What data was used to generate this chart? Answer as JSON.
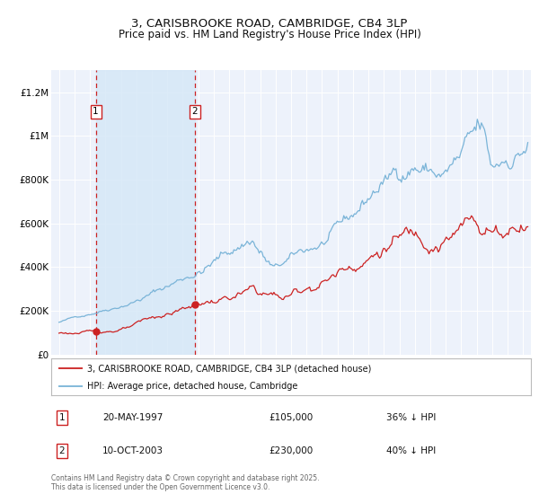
{
  "title": "3, CARISBROOKE ROAD, CAMBRIDGE, CB4 3LP",
  "subtitle": "Price paid vs. HM Land Registry's House Price Index (HPI)",
  "title_fontsize": 9.5,
  "subtitle_fontsize": 8.5,
  "bg_color": "#ffffff",
  "plot_bg_color": "#edf2fb",
  "grid_color": "#ffffff",
  "hpi_color": "#7ab4d8",
  "price_color": "#cc2222",
  "sale1_date_x": 1997.38,
  "sale1_price": 105000,
  "sale2_date_x": 2003.78,
  "sale2_price": 230000,
  "sale1_label": "1",
  "sale2_label": "2",
  "ylim": [
    0,
    1300000
  ],
  "yticks": [
    0,
    200000,
    400000,
    600000,
    800000,
    1000000,
    1200000
  ],
  "ytick_labels": [
    "£0",
    "£200K",
    "£400K",
    "£600K",
    "£800K",
    "£1M",
    "£1.2M"
  ],
  "xlim_start": 1994.5,
  "xlim_end": 2025.5,
  "legend_label_price": "3, CARISBROOKE ROAD, CAMBRIDGE, CB4 3LP (detached house)",
  "legend_label_hpi": "HPI: Average price, detached house, Cambridge",
  "footer": "Contains HM Land Registry data © Crown copyright and database right 2025.\nThis data is licensed under the Open Government Licence v3.0.",
  "table_rows": [
    {
      "num": "1",
      "date": "20-MAY-1997",
      "price": "£105,000",
      "hpi": "36% ↓ HPI"
    },
    {
      "num": "2",
      "date": "10-OCT-2003",
      "price": "£230,000",
      "hpi": "40% ↓ HPI"
    }
  ],
  "hpi_segments": [
    [
      1995.0,
      1997.5,
      148000,
      190000,
      0.01
    ],
    [
      1997.5,
      2000.0,
      190000,
      248000,
      0.012
    ],
    [
      2000.0,
      2004.0,
      248000,
      378000,
      0.015
    ],
    [
      2004.0,
      2007.5,
      378000,
      520000,
      0.018
    ],
    [
      2007.5,
      2009.0,
      520000,
      415000,
      0.022
    ],
    [
      2009.0,
      2014.0,
      415000,
      630000,
      0.015
    ],
    [
      2014.0,
      2016.0,
      630000,
      800000,
      0.018
    ],
    [
      2016.0,
      2018.0,
      800000,
      855000,
      0.018
    ],
    [
      2018.0,
      2020.0,
      855000,
      845000,
      0.018
    ],
    [
      2020.0,
      2022.3,
      845000,
      1060000,
      0.022
    ],
    [
      2022.3,
      2023.0,
      1060000,
      865000,
      0.028
    ],
    [
      2023.0,
      2025.3,
      865000,
      970000,
      0.018
    ]
  ],
  "prop_segments": [
    [
      1995.0,
      1997.5,
      98000,
      106000,
      0.018
    ],
    [
      1997.5,
      2000.0,
      106000,
      148000,
      0.018
    ],
    [
      2000.0,
      2004.0,
      148000,
      235000,
      0.02
    ],
    [
      2004.0,
      2007.5,
      235000,
      315000,
      0.022
    ],
    [
      2007.5,
      2009.5,
      315000,
      252000,
      0.028
    ],
    [
      2009.5,
      2014.0,
      252000,
      385000,
      0.022
    ],
    [
      2014.0,
      2016.5,
      385000,
      505000,
      0.022
    ],
    [
      2016.5,
      2019.0,
      505000,
      475000,
      0.022
    ],
    [
      2019.0,
      2022.0,
      475000,
      595000,
      0.022
    ],
    [
      2022.0,
      2023.5,
      595000,
      548000,
      0.028
    ],
    [
      2023.5,
      2025.3,
      548000,
      585000,
      0.022
    ]
  ]
}
